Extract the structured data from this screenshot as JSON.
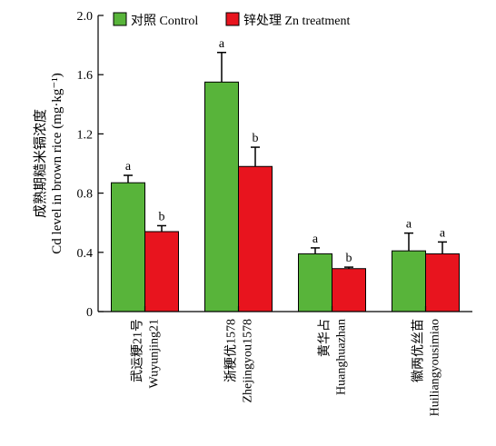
{
  "chart_data": {
    "type": "bar",
    "categories": [
      {
        "cn": "武运粳21号",
        "en": "Wuyunjing21"
      },
      {
        "cn": "浙粳优1578",
        "en": "Zhejingyou1578"
      },
      {
        "cn": "黄华占",
        "en": "Huanghuazhan"
      },
      {
        "cn": "徽两优丝苗",
        "en": "Huiliangyousimiao"
      }
    ],
    "series": [
      {
        "name": "对照 Control",
        "color": "#58b43a",
        "values": [
          0.87,
          1.55,
          0.39,
          0.41
        ],
        "errors": [
          0.05,
          0.2,
          0.04,
          0.12
        ],
        "letters": [
          "a",
          "a",
          "a",
          "a"
        ]
      },
      {
        "name": "锌处理 Zn treatment",
        "color": "#e8141e",
        "values": [
          0.54,
          0.98,
          0.29,
          0.39
        ],
        "errors": [
          0.04,
          0.13,
          0.01,
          0.08
        ],
        "letters": [
          "b",
          "b",
          "b",
          "a"
        ]
      }
    ],
    "ylabel_cn": "成熟期糙米镉浓度",
    "ylabel_en": "Cd level in brown rice (mg·kg⁻¹)",
    "ylim": [
      0,
      2.0
    ],
    "yticks": [
      "0",
      "0.4",
      "0.8",
      "1.2",
      "1.6",
      "2.0"
    ],
    "ytick_values": [
      0,
      0.4,
      0.8,
      1.2,
      1.6,
      2.0
    ],
    "legend_position": "top",
    "grid": false
  }
}
